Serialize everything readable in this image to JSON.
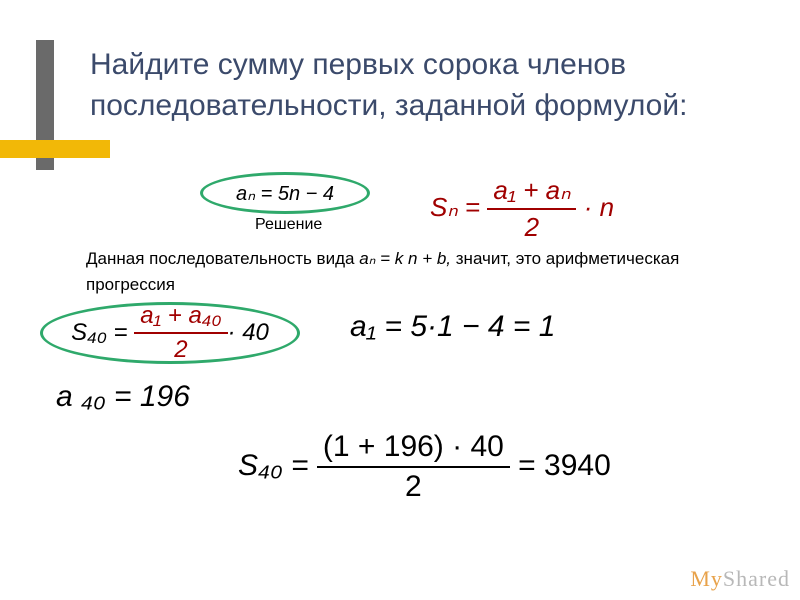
{
  "title": "Найдите сумму первых сорока членов последовательности, заданной формулой:",
  "formula_an": "aₙ = 5n − 4",
  "sum_formula": {
    "lhs": "Sₙ =",
    "num": "a₁ + aₙ",
    "den": "2",
    "tail": " · n"
  },
  "solution_label": "Решение",
  "text_line": {
    "part1": "Данная последовательность вида ",
    "formula": "aₙ = k n + b,",
    "part2": " значит, это арифметическая прогрессия"
  },
  "s40_formula": {
    "lhs": "S₄₀ =",
    "num": "a₁ + a₄₀",
    "den": "2",
    "tail": " · 40"
  },
  "a1_calc": "a₁ = 5·1 − 4 = 1",
  "a40_calc": "a ₄₀  =  196",
  "s40_calc": {
    "lhs": "S₄₀ =",
    "num": "(1 + 196) · 40",
    "den": "2",
    "tail": " = 3940"
  },
  "watermark_my": "My",
  "watermark_shared": "Shared",
  "colors": {
    "title": "#3b4a6b",
    "accent_orange": "#f2b807",
    "accent_gray": "#6a6a6a",
    "oval_border": "#2fa96b",
    "sum_formula": "#a00000"
  }
}
